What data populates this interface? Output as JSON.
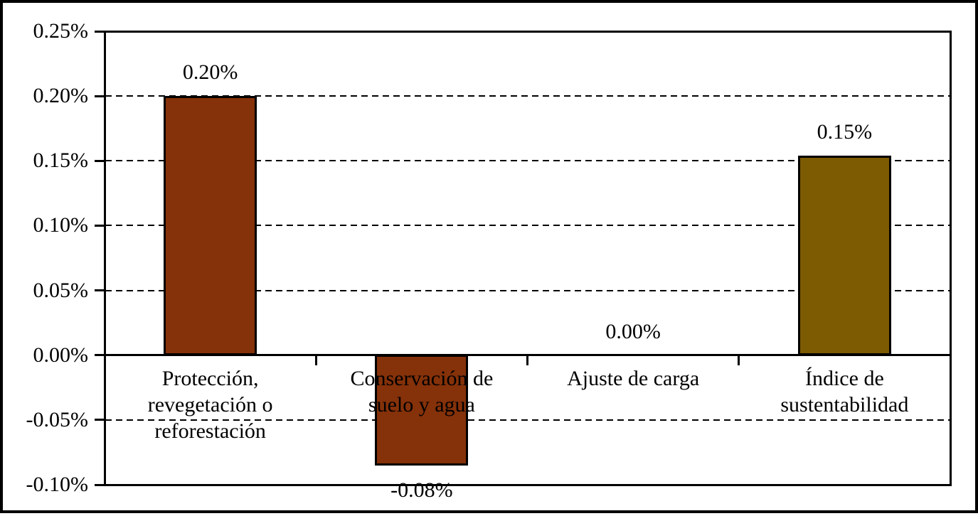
{
  "chart": {
    "background_color": "#FFFFFF",
    "frame_color": "#000000",
    "text_color": "#000000"
  },
  "chart_data": {
    "type": "bar",
    "title": "",
    "xlabel": "",
    "ylabel": "",
    "categories": [
      "Protección, revegetación o reforestación",
      "Conservación de suelo y agua",
      "Ajuste de carga",
      "Índice de sustentabilidad"
    ],
    "category_lines": [
      [
        "Protección,",
        "revegetación o",
        "reforestación"
      ],
      [
        "Conservación de",
        "suelo y agua"
      ],
      [
        "Ajuste de carga"
      ],
      [
        "Índice de",
        "sustentabilidad"
      ]
    ],
    "values": [
      0.2,
      -0.08,
      0.0,
      0.15
    ],
    "values_precise_est": [
      0.2,
      -0.085,
      0.0,
      0.154
    ],
    "data_labels": [
      "0.20%",
      "-0.08%",
      "0.00%",
      "0.15%"
    ],
    "bar_colors": [
      "#853109",
      "#853109",
      "#853109",
      "#7D5B03"
    ],
    "bar_border_color": "#000000",
    "ylim": [
      -0.1,
      0.25
    ],
    "ytick_step": 0.05,
    "ytick_labels": [
      "0.25%",
      "0.20%",
      "0.15%",
      "0.10%",
      "0.05%",
      "0.00%",
      "-0.05%",
      "-0.10%"
    ],
    "gridline_values": [
      0.2,
      0.15,
      0.1,
      0.05,
      -0.05
    ],
    "gridline_style": "dashed",
    "grid_color": "#000000",
    "axis_color": "#000000",
    "legend": "none"
  }
}
